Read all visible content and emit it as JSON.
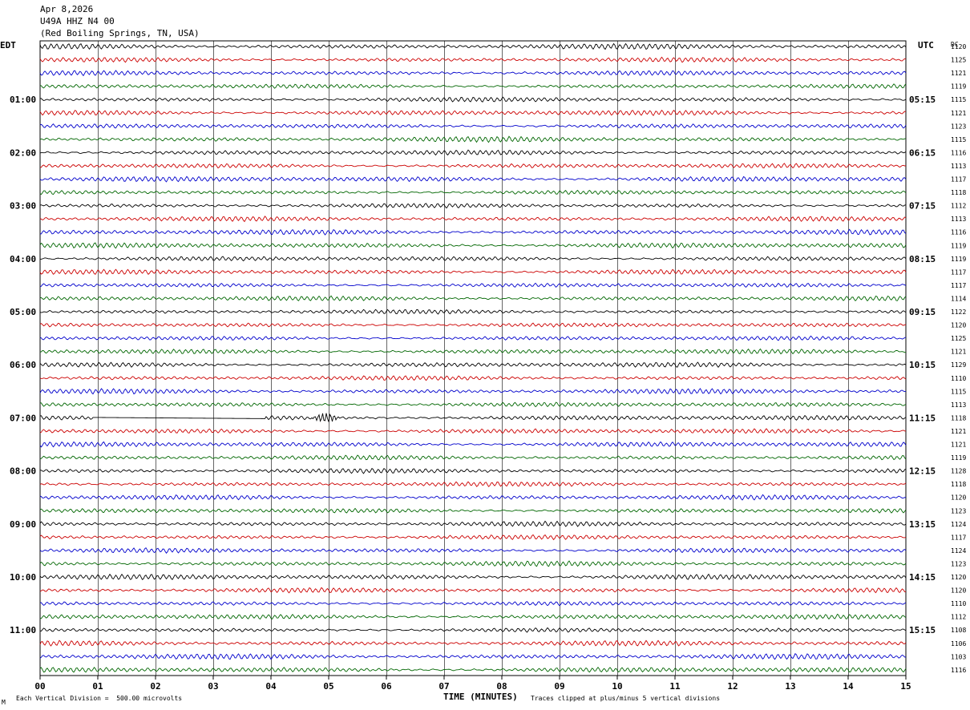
{
  "header": {
    "date": "Apr 8,2026",
    "station": "U49A HHZ N4 00",
    "location": "(Red Boiling Springs, TN, USA)"
  },
  "left_zone": "EDT",
  "right_zone": "UTC",
  "right_col_header": "DC",
  "footer": {
    "left_note": "Each Vertical Division =  500.00 microvolts",
    "xlabel": "TIME (MINUTES)",
    "right_note": "Traces clipped at plus/minus 5 vertical divisions",
    "corner_mark": "M"
  },
  "colors": {
    "trace_cycle": [
      "#000000",
      "#cc0000",
      "#0000cc",
      "#006600"
    ],
    "grid": "#000000"
  },
  "chart_data": {
    "type": "line",
    "xlabel": "TIME (MINUTES)",
    "xlim": [
      0,
      15
    ],
    "x_ticks": [
      "00",
      "01",
      "02",
      "03",
      "04",
      "05",
      "06",
      "07",
      "08",
      "09",
      "10",
      "11",
      "12",
      "13",
      "14",
      "15"
    ],
    "rows_per_hour": 4,
    "row_count": 48,
    "left_hour_labels": [
      "01:00",
      "02:00",
      "03:00",
      "04:00",
      "05:00",
      "06:00",
      "07:00",
      "08:00",
      "09:00",
      "10:00",
      "11:00"
    ],
    "right_hour_labels": [
      "05:15",
      "06:15",
      "07:15",
      "08:15",
      "09:15",
      "10:15",
      "11:15",
      "12:15",
      "13:15",
      "14:15",
      "15:15"
    ],
    "dc_offsets": [
      "1120",
      "1125",
      "1121",
      "1119",
      "1115",
      "1121",
      "1123",
      "1115",
      "1116",
      "1113",
      "1117",
      "1118",
      "1112",
      "1113",
      "1116",
      "1119",
      "1119",
      "1117",
      "1117",
      "1114",
      "1122",
      "1120",
      "1125",
      "1121",
      "1129",
      "1110",
      "1115",
      "1113",
      "1118",
      "1121",
      "1121",
      "1119",
      "1128",
      "1118",
      "1120",
      "1123",
      "1124",
      "1117",
      "1124",
      "1123",
      "1120",
      "1120",
      "1110",
      "1112",
      "1108",
      "1106",
      "1103",
      "1116"
    ],
    "event": {
      "row": 28,
      "minutes": [
        3.9,
        5.2
      ],
      "note": ""
    },
    "gap": {
      "row": 28,
      "minutes": [
        0.9,
        3.9
      ]
    }
  }
}
